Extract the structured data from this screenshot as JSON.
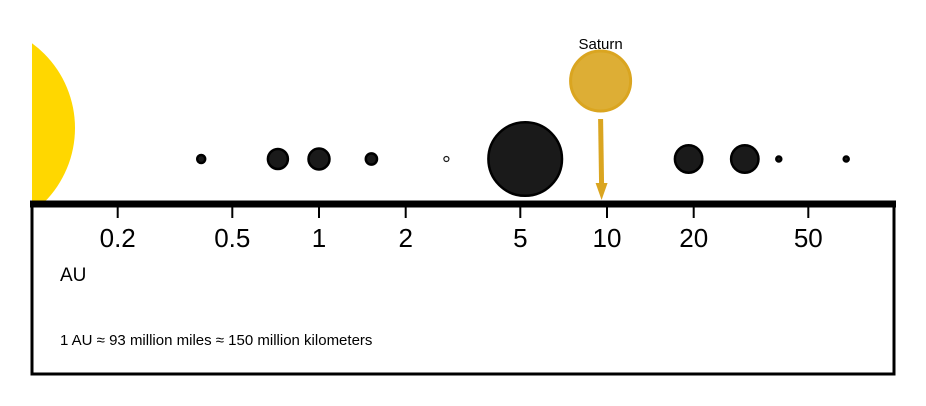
{
  "chart_data": {
    "type": "scatter",
    "x_scale": "log",
    "x_unit_label": "AU",
    "ticks": [
      {
        "value": 0.2,
        "label": "0.2"
      },
      {
        "value": 0.5,
        "label": "0.5"
      },
      {
        "value": 1,
        "label": "1"
      },
      {
        "value": 2,
        "label": "2"
      },
      {
        "value": 5,
        "label": "5"
      },
      {
        "value": 10,
        "label": "10"
      },
      {
        "value": 20,
        "label": "20"
      },
      {
        "value": 50,
        "label": "50"
      }
    ],
    "xlim": [
      0.1,
      82
    ],
    "sun": {
      "color": "#FFD700"
    },
    "bodies": [
      {
        "distance_au": 0.39,
        "relative_size": 0.38,
        "color": "#1a1a1a"
      },
      {
        "distance_au": 0.72,
        "relative_size": 0.95,
        "color": "#1a1a1a"
      },
      {
        "distance_au": 1.0,
        "relative_size": 1.0,
        "color": "#1a1a1a"
      },
      {
        "distance_au": 1.52,
        "relative_size": 0.53,
        "color": "#1a1a1a"
      },
      {
        "distance_au": 2.77,
        "relative_size": 0.07,
        "color": "#ffffff",
        "hollow": true
      },
      {
        "distance_au": 5.2,
        "relative_size": 3.5,
        "color": "#1a1a1a"
      },
      {
        "distance_au": 19.2,
        "relative_size": 1.3,
        "color": "#1a1a1a"
      },
      {
        "distance_au": 30.1,
        "relative_size": 1.3,
        "color": "#1a1a1a"
      },
      {
        "distance_au": 39.5,
        "relative_size": 0.2,
        "color": "#1a1a1a"
      },
      {
        "distance_au": 67.7,
        "relative_size": 0.2,
        "color": "#1a1a1a"
      }
    ],
    "highlight": {
      "label": "Saturn",
      "distance_au": 9.5,
      "color": "#DAA520",
      "fill": "#DDAE35"
    }
  },
  "footer": {
    "unit": "AU",
    "note": "1 AU ≈ 93 million miles ≈ 150 million kilometers"
  }
}
